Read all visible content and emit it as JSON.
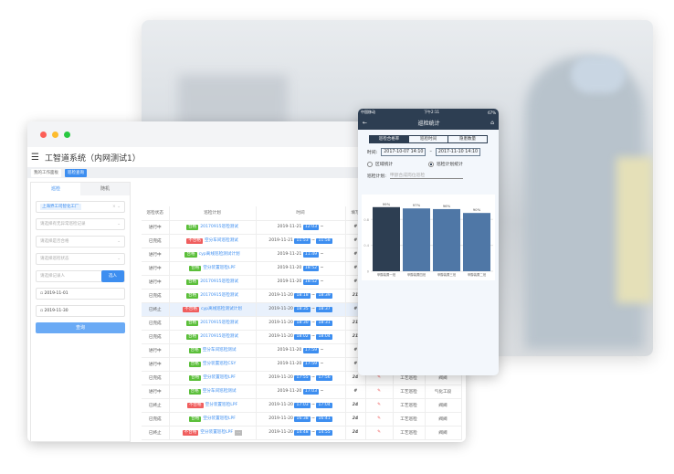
{
  "window": {
    "title": "工智道系统（内网测试1）",
    "tabs": [
      {
        "label": "我的工作面板"
      },
      {
        "label": "巡检查询"
      }
    ]
  },
  "filters": {
    "tabs": [
      "巡检",
      "随机"
    ],
    "factory": "上海界工司智化工厂",
    "placeholders": [
      "请选择有无异常巡检记录",
      "请选择是否合格",
      "请选择巡检状态",
      "请选择记录人"
    ],
    "select_person_button": "选人",
    "start_date": "2019-11-01",
    "end_date": "2019-11-30",
    "query_button": "查询"
  },
  "table": {
    "headers": [
      "巡检状态",
      "巡检计划",
      "时间",
      "填写"
    ],
    "rows": [
      {
        "status": "进行中",
        "result": "合格",
        "plan": "20170915巡检测试",
        "date": "2019-11-21",
        "start": "12:03",
        "end": "",
        "fill": "#"
      },
      {
        "status": "已完成",
        "result": "不合格",
        "plan": "空分车间巡检测试",
        "date": "2019-11-21",
        "start": "11:53",
        "end": "11:58",
        "fill": "#"
      },
      {
        "status": "进行中",
        "result": "合格",
        "plan": "cyp离线巡检测试计划",
        "date": "2019-11-21",
        "start": "11:49",
        "end": "",
        "fill": "#"
      },
      {
        "status": "进行中",
        "result": "合格",
        "plan": "空分装置巡检LPF",
        "date": "2019-11-20",
        "start": "18:52",
        "end": "",
        "fill": "#"
      },
      {
        "status": "进行中",
        "result": "合格",
        "plan": "20170915巡检测试",
        "date": "2019-11-20",
        "start": "18:52",
        "end": "",
        "fill": "#"
      },
      {
        "status": "已完成",
        "result": "合格",
        "plan": "20170915巡检测试",
        "date": "2019-11-20",
        "start": "18:18",
        "end": "18:39",
        "fill": "21"
      },
      {
        "status": "已终止",
        "result": "不合格",
        "plan": "cyp离线巡检测试计划",
        "date": "2019-11-20",
        "start": "18:35",
        "end": "18:37",
        "fill": "#"
      },
      {
        "status": "已完成",
        "result": "合格",
        "plan": "20170915巡检测试",
        "date": "2019-11-20",
        "start": "18:30",
        "end": "18:31",
        "fill": "21"
      },
      {
        "status": "已完成",
        "result": "合格",
        "plan": "20170915巡检测试",
        "date": "2019-11-20",
        "start": "18:02",
        "end": "18:04",
        "fill": "21"
      },
      {
        "status": "进行中",
        "result": "合格",
        "plan": "空分车间巡检测试",
        "date": "2019-11-20",
        "start": "17:59",
        "end": "",
        "fill": "#"
      },
      {
        "status": "进行中",
        "result": "合格",
        "plan": "空分装置巡检CSY",
        "date": "2019-11-20",
        "start": "17:59",
        "end": "",
        "fill": "#"
      },
      {
        "status": "已完成",
        "result": "合格",
        "plan": "空分装置巡检LPF",
        "date": "2019-11-20",
        "start": "17:55",
        "end": "17:56",
        "fill": "24",
        "type": "工艺巡检",
        "area": "阀阀"
      },
      {
        "status": "进行中",
        "result": "合格",
        "plan": "空分车间巡检测试",
        "date": "2019-11-20",
        "start": "17:03",
        "end": "",
        "fill": "#",
        "type": "工艺巡检",
        "area": "气化工段"
      },
      {
        "status": "已终止",
        "result": "不合格",
        "plan": "空分装置巡检LPF",
        "date": "2019-11-20",
        "start": "17:03",
        "end": "17:04",
        "fill": "24",
        "type": "工艺巡检",
        "area": "阀阀"
      },
      {
        "status": "已完成",
        "result": "合格",
        "plan": "空分装置巡检LPF",
        "date": "2019-11-20",
        "start": "16:38",
        "end": "16:41",
        "fill": "24",
        "type": "工艺巡检",
        "area": "阀阀"
      },
      {
        "status": "已终止",
        "result": "不合格",
        "plan": "空分装置巡检LPF",
        "date": "2019-11-20",
        "start": "14:48",
        "end": "14:55",
        "fill": "24",
        "type": "工艺巡检",
        "area": "阀阀",
        "extra": "..."
      }
    ]
  },
  "phone": {
    "carrier": "中国移动",
    "clock": "下午2:11",
    "battery": "67%",
    "title": "巡检统计",
    "segments": [
      "巡检合格率",
      "巡检时间",
      "隐患数量"
    ],
    "time_label": "时间:",
    "time_from": "2017-10-07 14:10",
    "time_to": "2017-11-10 14:10",
    "radio_area": "区域统计",
    "radio_plan": "巡检计划统计",
    "plan_label": "巡检计划:",
    "plan_value": "甲醇合成岗位巡检"
  },
  "chart_data": {
    "type": "bar",
    "categories": [
      "甲醇装置一班",
      "甲醇装置四班",
      "甲醇装置三班",
      "甲醇装置二班"
    ],
    "values": [
      0.99,
      0.97,
      0.96,
      0.9
    ],
    "data_labels": [
      "99%",
      "97%",
      "96%",
      "90%"
    ],
    "yticks": [
      "0",
      "0.4",
      "0.8"
    ],
    "ylim": [
      0,
      1.1
    ],
    "colors": [
      "#2d3e52",
      "#4f77a6",
      "#4f77a6",
      "#4f77a6"
    ]
  },
  "colors": {
    "accent": "#3d8ef0",
    "pass": "#5bbf3a",
    "fail": "#f05e5e",
    "phone_nav": "#2d3e52"
  }
}
